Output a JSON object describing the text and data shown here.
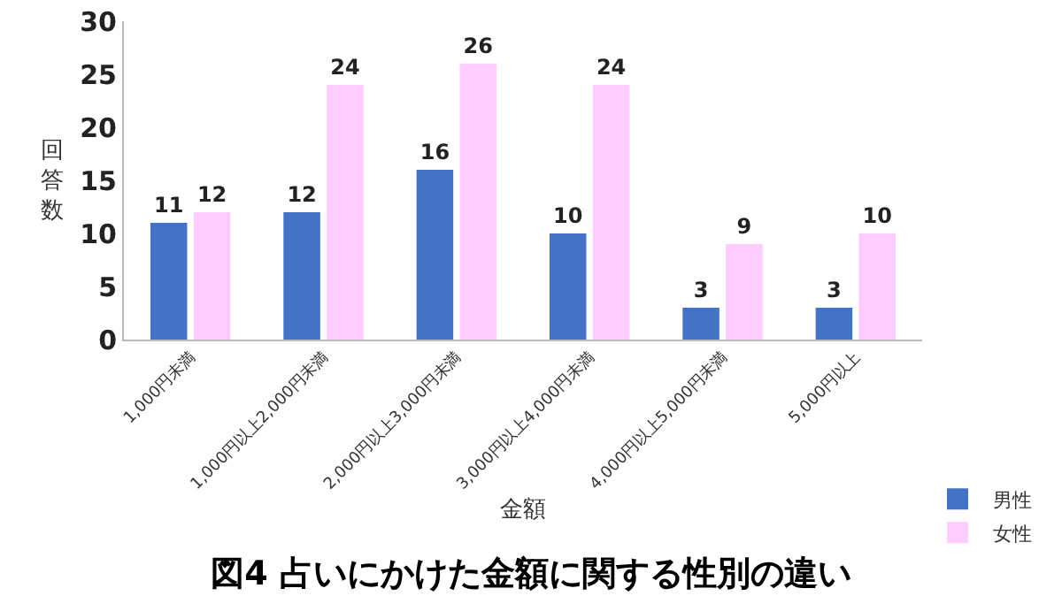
{
  "chart_data": {
    "type": "bar",
    "title": "図4 占いにかけた金額に関する性別の違い",
    "xlabel": "金額",
    "ylabel": "回答数",
    "categories": [
      "1,000円未満",
      "1,000円以上2,000円未満",
      "2,000円以上3,000円未満",
      "3,000円以上4,000円未満",
      "4,000円以上5,000円未満",
      "5,000円以上"
    ],
    "series": [
      {
        "name": "男性",
        "color": "#4472c4",
        "values": [
          11,
          12,
          16,
          10,
          3,
          3
        ]
      },
      {
        "name": "女性",
        "color": "#ffccff",
        "values": [
          12,
          24,
          26,
          24,
          9,
          10
        ]
      }
    ],
    "ylim": [
      0,
      30
    ],
    "yticks": [
      0,
      5,
      10,
      15,
      20,
      25,
      30
    ],
    "grid": false,
    "legend": "bottom right",
    "data_labels": true
  }
}
